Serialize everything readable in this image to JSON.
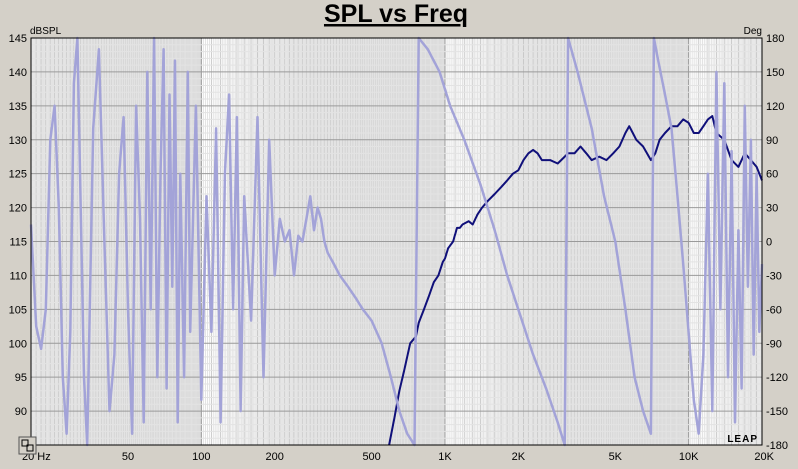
{
  "chart_data": {
    "type": "line",
    "title": "SPL vs Freq",
    "y_left_unit": "dBSPL",
    "y_right_unit": "Deg",
    "x_scale": "log",
    "xlim": [
      20,
      20000
    ],
    "ylim_left": [
      85,
      145
    ],
    "ylim_right": [
      -180,
      180
    ],
    "grid": true,
    "x_tick_labels": [
      {
        "value": 20,
        "label": "20 Hz"
      },
      {
        "value": 50,
        "label": "50"
      },
      {
        "value": 100,
        "label": "100"
      },
      {
        "value": 200,
        "label": "200"
      },
      {
        "value": 500,
        "label": "500"
      },
      {
        "value": 1000,
        "label": "1K"
      },
      {
        "value": 2000,
        "label": "2K"
      },
      {
        "value": 5000,
        "label": "5K"
      },
      {
        "value": 10000,
        "label": "10K"
      },
      {
        "value": 20000,
        "label": "20K"
      }
    ],
    "y_left_ticks": [
      145,
      140,
      135,
      130,
      125,
      120,
      115,
      110,
      105,
      100,
      95,
      90
    ],
    "y_right_ticks": [
      180,
      150,
      120,
      90,
      60,
      30,
      0,
      -30,
      -60,
      -90,
      -120,
      -150,
      -180
    ],
    "series": [
      {
        "axis": "left",
        "color": "#10107a",
        "points": [
          [
            590,
            85
          ],
          [
            620,
            89
          ],
          [
            650,
            93
          ],
          [
            680,
            96
          ],
          [
            700,
            98
          ],
          [
            720,
            100
          ],
          [
            760,
            101
          ],
          [
            780,
            103
          ],
          [
            820,
            105
          ],
          [
            860,
            107
          ],
          [
            900,
            109
          ],
          [
            940,
            110
          ],
          [
            980,
            112
          ],
          [
            1000,
            112.5
          ],
          [
            1030,
            114
          ],
          [
            1080,
            115
          ],
          [
            1120,
            117
          ],
          [
            1150,
            117
          ],
          [
            1180,
            117.5
          ],
          [
            1250,
            118
          ],
          [
            1300,
            117.5
          ],
          [
            1360,
            119
          ],
          [
            1420,
            120
          ],
          [
            1500,
            121
          ],
          [
            1600,
            122
          ],
          [
            1700,
            123
          ],
          [
            1800,
            124
          ],
          [
            1900,
            125
          ],
          [
            2000,
            125.5
          ],
          [
            2100,
            127
          ],
          [
            2200,
            128
          ],
          [
            2300,
            128.5
          ],
          [
            2400,
            128
          ],
          [
            2500,
            127
          ],
          [
            2700,
            127
          ],
          [
            2900,
            126.5
          ],
          [
            3000,
            127
          ],
          [
            3200,
            128
          ],
          [
            3400,
            128
          ],
          [
            3600,
            129
          ],
          [
            3800,
            128
          ],
          [
            4000,
            127
          ],
          [
            4300,
            127.5
          ],
          [
            4600,
            127
          ],
          [
            4900,
            128
          ],
          [
            5200,
            129
          ],
          [
            5500,
            131
          ],
          [
            5700,
            132
          ],
          [
            5900,
            131
          ],
          [
            6100,
            130
          ],
          [
            6500,
            129
          ],
          [
            7000,
            127
          ],
          [
            7300,
            128
          ],
          [
            7600,
            130
          ],
          [
            8000,
            131
          ],
          [
            8500,
            132
          ],
          [
            9000,
            132
          ],
          [
            9500,
            133
          ],
          [
            10000,
            132.5
          ],
          [
            10500,
            131
          ],
          [
            11000,
            131
          ],
          [
            11500,
            132
          ],
          [
            12000,
            133
          ],
          [
            12500,
            133.5
          ],
          [
            13000,
            131
          ],
          [
            14000,
            130
          ],
          [
            15000,
            127
          ],
          [
            16000,
            126
          ],
          [
            17000,
            128
          ],
          [
            18000,
            127
          ],
          [
            19000,
            126
          ],
          [
            20000,
            124
          ]
        ]
      },
      {
        "axis": "right",
        "color": "#a3a3d8",
        "points": [
          [
            20,
            15
          ],
          [
            21,
            -75
          ],
          [
            22,
            -95
          ],
          [
            23,
            -60
          ],
          [
            24,
            90
          ],
          [
            25,
            120
          ],
          [
            26,
            30
          ],
          [
            27,
            -120
          ],
          [
            28,
            -170
          ],
          [
            29,
            -80
          ],
          [
            30,
            140
          ],
          [
            31,
            180
          ],
          [
            32,
            30
          ],
          [
            33,
            -120
          ],
          [
            34,
            -180
          ],
          [
            35,
            -40
          ],
          [
            36,
            100
          ],
          [
            38,
            170
          ],
          [
            40,
            0
          ],
          [
            42,
            -150
          ],
          [
            44,
            -100
          ],
          [
            46,
            60
          ],
          [
            48,
            110
          ],
          [
            50,
            -60
          ],
          [
            52,
            -170
          ],
          [
            54,
            120
          ],
          [
            56,
            20
          ],
          [
            58,
            -160
          ],
          [
            60,
            150
          ],
          [
            62,
            -60
          ],
          [
            64,
            180
          ],
          [
            66,
            -120
          ],
          [
            68,
            60
          ],
          [
            70,
            170
          ],
          [
            72,
            -130
          ],
          [
            74,
            130
          ],
          [
            76,
            -40
          ],
          [
            78,
            160
          ],
          [
            80,
            -160
          ],
          [
            82,
            60
          ],
          [
            85,
            -120
          ],
          [
            88,
            150
          ],
          [
            90,
            -80
          ],
          [
            95,
            120
          ],
          [
            100,
            -140
          ],
          [
            105,
            40
          ],
          [
            110,
            -80
          ],
          [
            115,
            100
          ],
          [
            120,
            -160
          ],
          [
            125,
            60
          ],
          [
            130,
            130
          ],
          [
            135,
            -60
          ],
          [
            140,
            110
          ],
          [
            145,
            -150
          ],
          [
            150,
            40
          ],
          [
            160,
            -70
          ],
          [
            170,
            110
          ],
          [
            180,
            -120
          ],
          [
            190,
            90
          ],
          [
            200,
            -30
          ],
          [
            210,
            20
          ],
          [
            220,
            0
          ],
          [
            230,
            10
          ],
          [
            240,
            -30
          ],
          [
            250,
            5
          ],
          [
            260,
            0
          ],
          [
            270,
            20
          ],
          [
            280,
            40
          ],
          [
            290,
            10
          ],
          [
            300,
            30
          ],
          [
            310,
            20
          ],
          [
            320,
            0
          ],
          [
            330,
            -10
          ],
          [
            350,
            -20
          ],
          [
            370,
            -30
          ],
          [
            400,
            -40
          ],
          [
            430,
            -50
          ],
          [
            460,
            -60
          ],
          [
            500,
            -70
          ],
          [
            550,
            -90
          ],
          [
            600,
            -120
          ],
          [
            650,
            -150
          ],
          [
            700,
            -170
          ],
          [
            750,
            -180
          ],
          [
            780,
            180
          ],
          [
            850,
            170
          ],
          [
            950,
            150
          ],
          [
            1050,
            120
          ],
          [
            1200,
            90
          ],
          [
            1400,
            50
          ],
          [
            1600,
            10
          ],
          [
            1800,
            -30
          ],
          [
            2000,
            -60
          ],
          [
            2300,
            -100
          ],
          [
            2600,
            -130
          ],
          [
            2900,
            -160
          ],
          [
            3100,
            -180
          ],
          [
            3200,
            180
          ],
          [
            3500,
            150
          ],
          [
            4000,
            100
          ],
          [
            4500,
            40
          ],
          [
            5000,
            0
          ],
          [
            5500,
            -60
          ],
          [
            6000,
            -120
          ],
          [
            6500,
            -150
          ],
          [
            7000,
            -170
          ],
          [
            7200,
            180
          ],
          [
            7500,
            160
          ],
          [
            8000,
            130
          ],
          [
            8500,
            100
          ],
          [
            9000,
            40
          ],
          [
            9500,
            -20
          ],
          [
            10000,
            -80
          ],
          [
            10500,
            -140
          ],
          [
            11000,
            -170
          ],
          [
            11500,
            -100
          ],
          [
            12000,
            60
          ],
          [
            12500,
            -150
          ],
          [
            13000,
            150
          ],
          [
            13500,
            -60
          ],
          [
            14000,
            140
          ],
          [
            14500,
            -120
          ],
          [
            15000,
            80
          ],
          [
            15500,
            -160
          ],
          [
            16000,
            10
          ],
          [
            16500,
            -130
          ],
          [
            17000,
            120
          ],
          [
            17500,
            -40
          ],
          [
            18000,
            90
          ],
          [
            18500,
            -100
          ],
          [
            19000,
            60
          ],
          [
            19500,
            -80
          ],
          [
            20000,
            -20
          ]
        ]
      }
    ]
  },
  "logo": "LEAP"
}
